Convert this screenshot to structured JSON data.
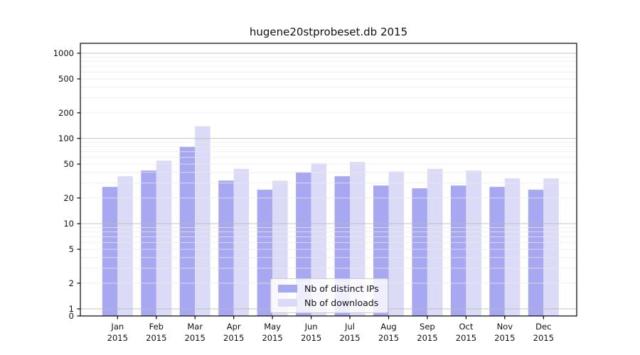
{
  "title": "hugene20stprobeset.db 2015",
  "chart_data": {
    "type": "bar",
    "title": "hugene20stprobeset.db 2015",
    "scale": "symlog",
    "categories": [
      "Jan",
      "Feb",
      "Mar",
      "Apr",
      "May",
      "Jun",
      "Jul",
      "Aug",
      "Sep",
      "Oct",
      "Nov",
      "Dec"
    ],
    "year": "2015",
    "x_tick_labels": [
      "Jan 2015",
      "Feb 2015",
      "Mar 2015",
      "Apr 2015",
      "May 2015",
      "Jun 2015",
      "Jul 2015",
      "Aug 2015",
      "Sep 2015",
      "Oct 2015",
      "Nov 2015",
      "Dec 2015"
    ],
    "series": [
      {
        "name": "Nb of distinct IPs",
        "color": "#a8a8f2",
        "values": [
          27,
          42,
          80,
          32,
          25,
          40,
          36,
          28,
          26,
          28,
          27,
          25
        ]
      },
      {
        "name": "Nb of downloads",
        "color": "#dbdbf8",
        "values": [
          36,
          55,
          139,
          44,
          32,
          51,
          53,
          41,
          44,
          42,
          34,
          34
        ]
      }
    ],
    "yticks": [
      0,
      1,
      2,
      5,
      10,
      20,
      50,
      100,
      200,
      500,
      1000
    ],
    "ylim": [
      0,
      1300
    ],
    "xlabel": "",
    "ylabel": "",
    "grid": true,
    "legend_position": "bottom-center"
  },
  "colors": {
    "background": "#ffffff",
    "axis": "#000000",
    "major_grid": "#b8b8b8",
    "minor_grid": "#e9e9e9",
    "text": "#111111"
  }
}
